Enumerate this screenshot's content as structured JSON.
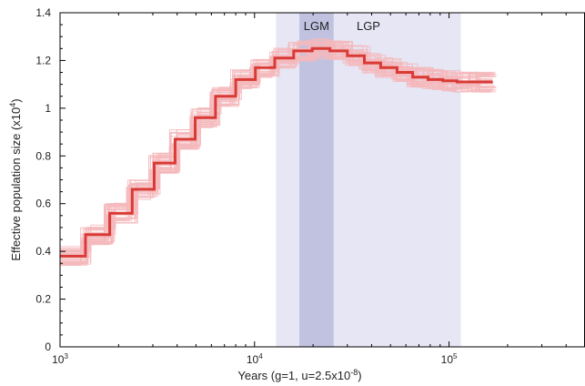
{
  "chart_data": {
    "type": "line",
    "title": "",
    "xlabel": "Years (g=1, u=2.5x10",
    "xlabel_sup": "-8",
    "xlabel_end": ")",
    "ylabel": "Effective population size (x10",
    "ylabel_sup": "4",
    "ylabel_end": ")",
    "x_scale": "log",
    "xlim": [
      1000,
      500000
    ],
    "ylim": [
      0,
      1.4
    ],
    "x_ticks": [
      {
        "value": 1000,
        "base": "10",
        "exp": "3"
      },
      {
        "value": 10000,
        "base": "10",
        "exp": "4"
      },
      {
        "value": 100000,
        "base": "10",
        "exp": "5"
      }
    ],
    "y_ticks": [
      {
        "value": 0,
        "label": "0"
      },
      {
        "value": 0.2,
        "label": "0.2"
      },
      {
        "value": 0.4,
        "label": "0.4"
      },
      {
        "value": 0.6,
        "label": "0.6"
      },
      {
        "value": 0.8,
        "label": "0.8"
      },
      {
        "value": 1.0,
        "label": "1"
      },
      {
        "value": 1.2,
        "label": "1.2"
      },
      {
        "value": 1.4,
        "label": "1.4"
      }
    ],
    "regions": [
      {
        "label": "LGP",
        "x_start": 12900,
        "x_end": 115000,
        "color": "#e6e6f5"
      },
      {
        "label": "LGM",
        "x_start": 17000,
        "x_end": 25500,
        "color": "#c0c2e0"
      }
    ],
    "series": [
      {
        "style": "step",
        "color": "#d93a35",
        "x": [
          1000,
          1350,
          1800,
          2350,
          3050,
          3900,
          4950,
          6300,
          8000,
          10100,
          12700,
          15900,
          19800,
          24400,
          30000,
          36700,
          44500,
          54000,
          65000,
          78000,
          93000,
          110000,
          135000,
          168000
        ],
        "values": [
          0.38,
          0.47,
          0.56,
          0.66,
          0.77,
          0.87,
          0.96,
          1.05,
          1.12,
          1.17,
          1.21,
          1.24,
          1.25,
          1.24,
          1.22,
          1.19,
          1.17,
          1.15,
          1.13,
          1.12,
          1.115,
          1.11,
          1.11,
          1.11
        ]
      }
    ],
    "bootstrap_color": "#f4b9bc",
    "bootstrap_count": 40
  }
}
